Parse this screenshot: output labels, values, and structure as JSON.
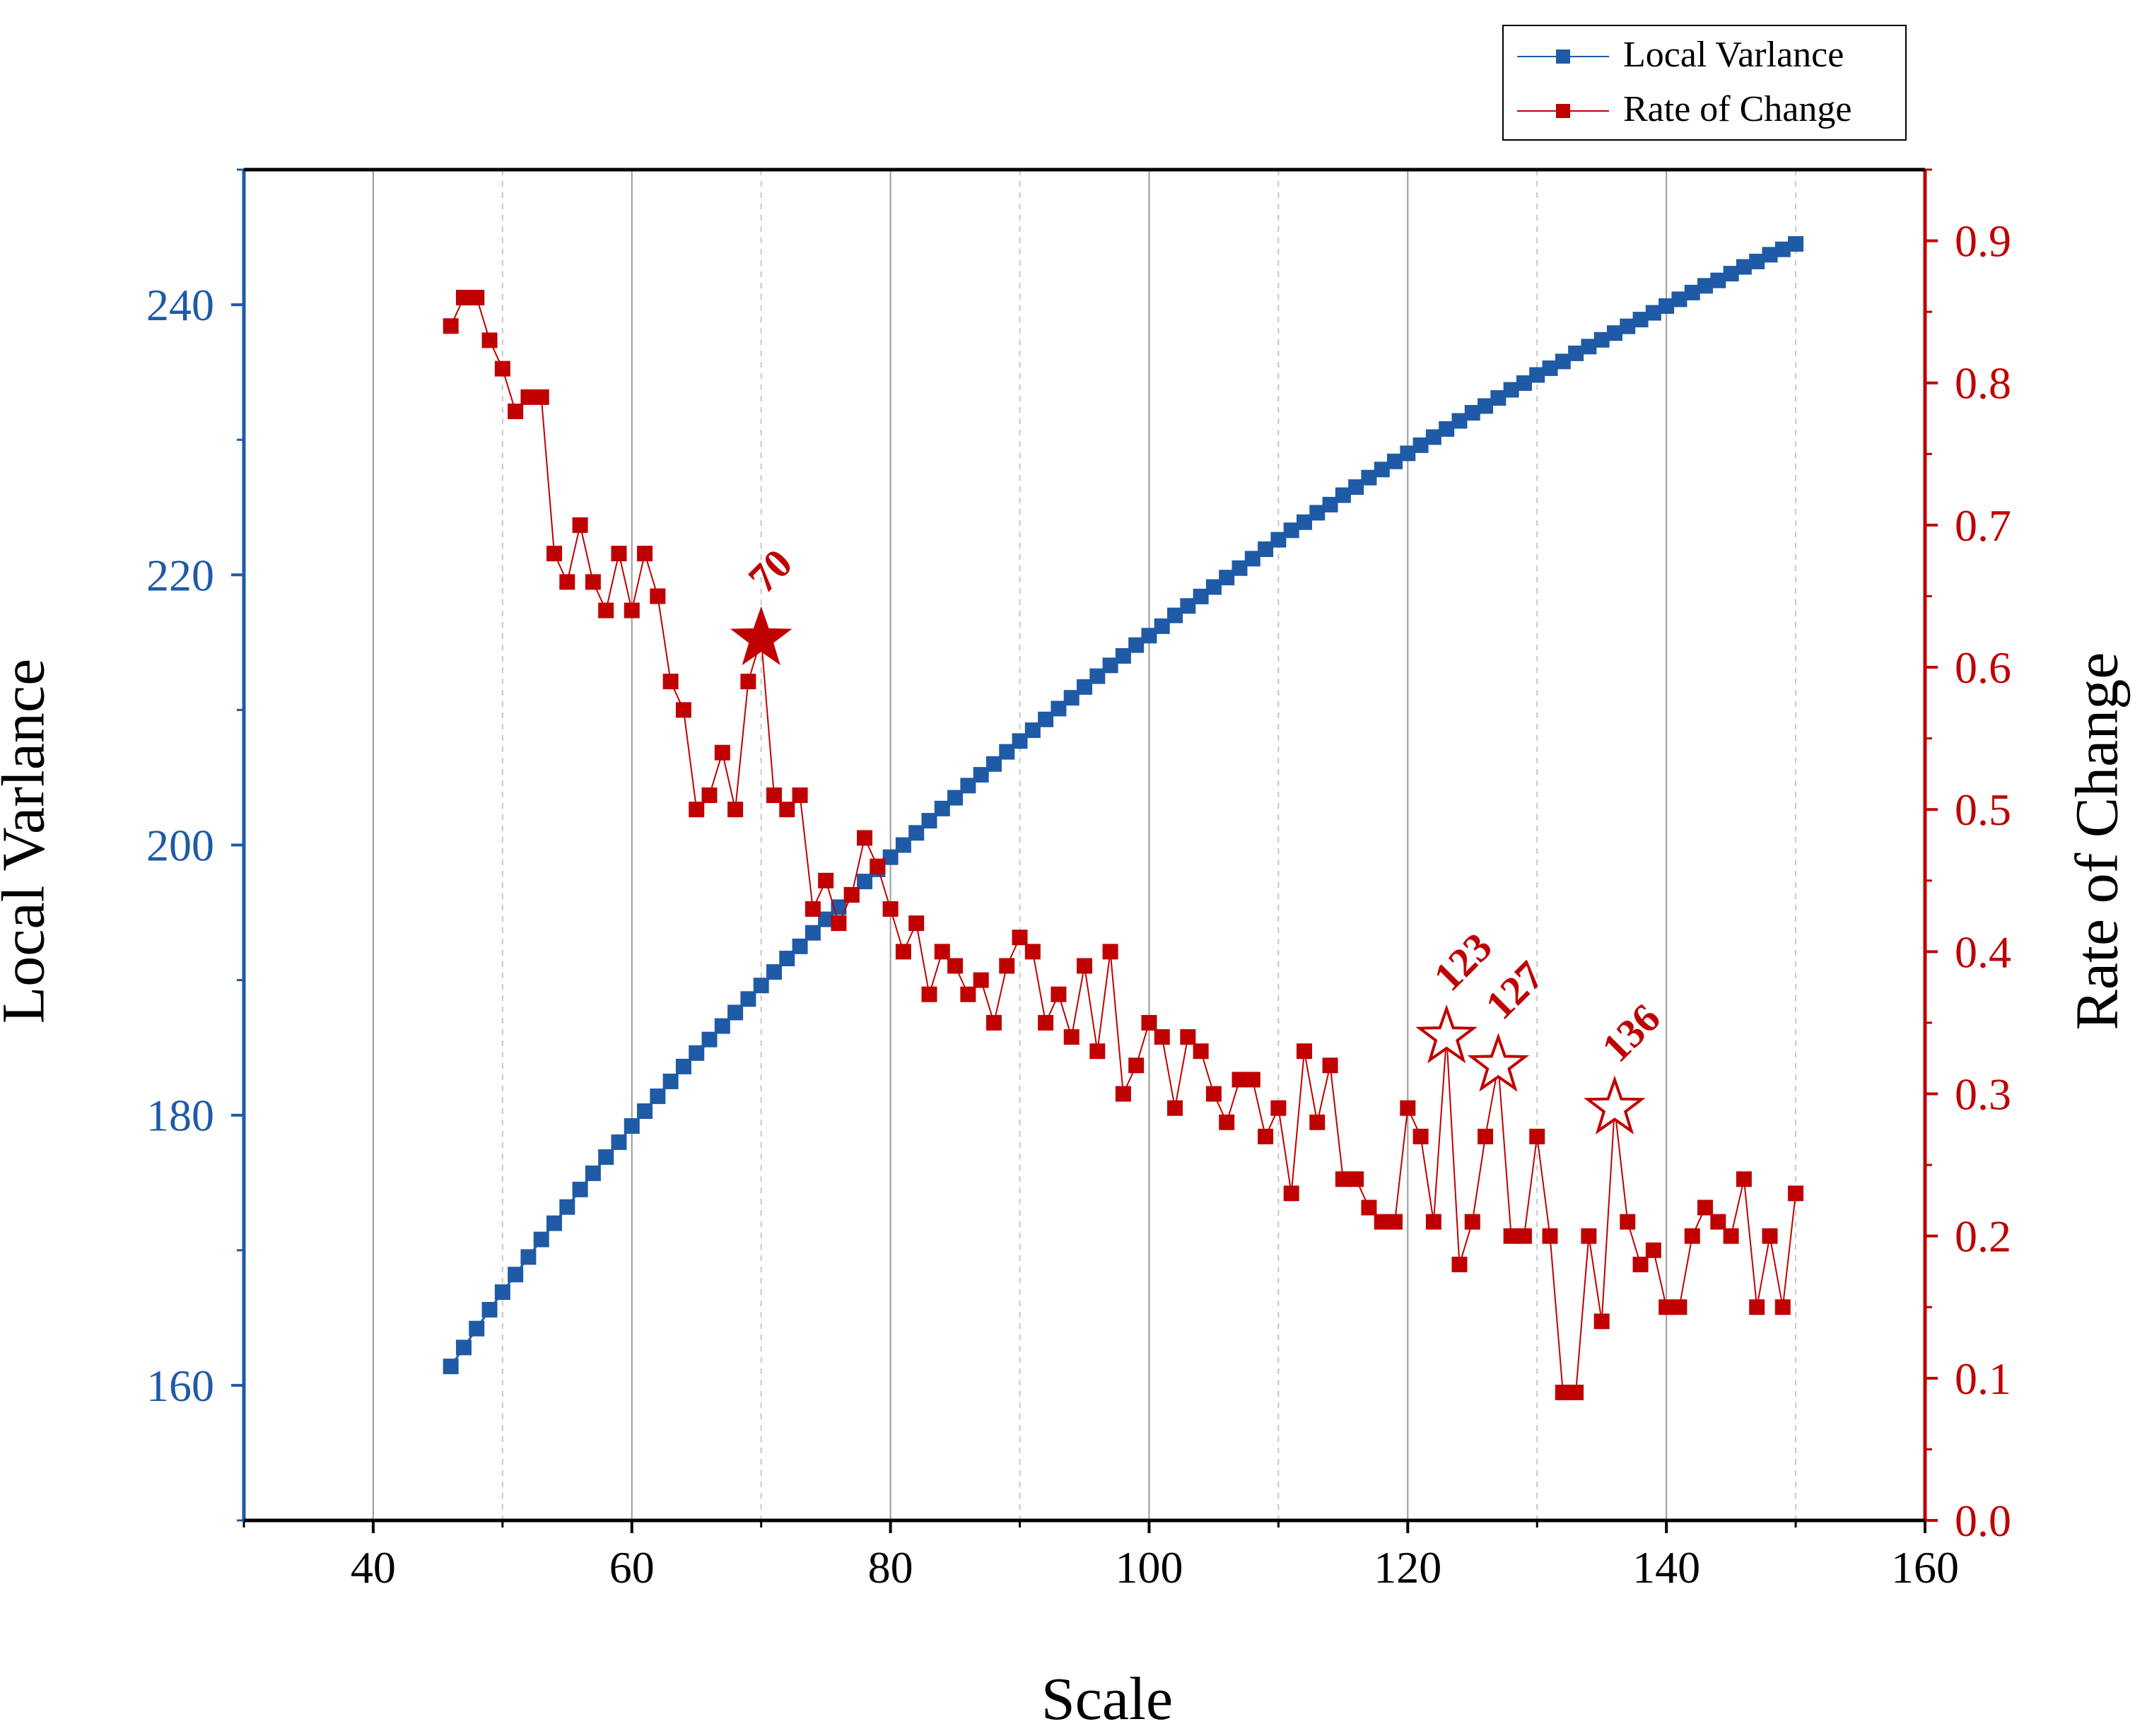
{
  "chart_data": {
    "type": "line",
    "title": "",
    "xlabel": "Scale",
    "ylabel": "Local Varlance",
    "y2label": "Rate of Change",
    "xlim": [
      30,
      160
    ],
    "ylim": [
      150,
      250
    ],
    "y2lim": [
      0.0,
      0.95
    ],
    "x_ticks": [
      "40",
      "60",
      "80",
      "100",
      "120",
      "140",
      "160"
    ],
    "y_ticks": [
      "160",
      "180",
      "200",
      "220",
      "240"
    ],
    "y2_ticks": [
      "0.0",
      "0.1",
      "0.2",
      "0.3",
      "0.4",
      "0.5",
      "0.6",
      "0.7",
      "0.8",
      "0.9"
    ],
    "grid": "vertical",
    "legend_position": "top-right",
    "colors": {
      "local_variance": "#1f5aa6",
      "rate_of_change": "#c00000",
      "left_axis": "#1f5aa6",
      "right_axis": "#c00000",
      "frame": "#000000",
      "grid_major": "#9a9a9a",
      "grid_minor": "#c8c8c8"
    },
    "series": [
      {
        "name": "Local Varlance",
        "axis": "left",
        "x": [
          46,
          47,
          48,
          49,
          50,
          51,
          52,
          53,
          54,
          55,
          56,
          57,
          58,
          59,
          60,
          61,
          62,
          63,
          64,
          65,
          66,
          67,
          68,
          69,
          70,
          71,
          72,
          73,
          74,
          75,
          76,
          77,
          78,
          79,
          80,
          81,
          82,
          83,
          84,
          85,
          86,
          87,
          88,
          89,
          90,
          91,
          92,
          93,
          94,
          95,
          96,
          97,
          98,
          99,
          100,
          101,
          102,
          103,
          104,
          105,
          106,
          107,
          108,
          109,
          110,
          111,
          112,
          113,
          114,
          115,
          116,
          117,
          118,
          119,
          120,
          121,
          122,
          123,
          124,
          125,
          126,
          127,
          128,
          129,
          130,
          131,
          132,
          133,
          134,
          135,
          136,
          137,
          138,
          139,
          140,
          141,
          142,
          143,
          144,
          145,
          146,
          147,
          148,
          149,
          150
        ],
        "values": [
          161.4,
          162.8,
          164.2,
          165.6,
          166.9,
          168.2,
          169.5,
          170.8,
          172.0,
          173.2,
          174.5,
          175.7,
          176.9,
          178.0,
          179.2,
          180.3,
          181.4,
          182.5,
          183.6,
          184.6,
          185.6,
          186.6,
          187.6,
          188.6,
          189.6,
          190.6,
          191.6,
          192.5,
          193.5,
          194.5,
          195.4,
          196.3,
          197.3,
          198.2,
          199.1,
          200.0,
          200.9,
          201.8,
          202.7,
          203.5,
          204.4,
          205.2,
          206.0,
          206.9,
          207.7,
          208.5,
          209.3,
          210.1,
          210.9,
          211.7,
          212.5,
          213.3,
          214.0,
          214.8,
          215.5,
          216.2,
          217.0,
          217.7,
          218.4,
          219.1,
          219.8,
          220.5,
          221.2,
          221.9,
          222.6,
          223.3,
          223.9,
          224.6,
          225.2,
          225.9,
          226.5,
          227.2,
          227.8,
          228.4,
          229.0,
          229.6,
          230.2,
          230.8,
          231.4,
          232.0,
          232.5,
          233.1,
          233.7,
          234.2,
          234.8,
          235.3,
          235.8,
          236.4,
          236.9,
          237.4,
          237.9,
          238.4,
          238.9,
          239.4,
          239.9,
          240.4,
          240.9,
          241.4,
          241.8,
          242.3,
          242.8,
          243.2,
          243.7,
          244.1,
          244.5
        ]
      },
      {
        "name": "Rate of Change",
        "axis": "right",
        "x": [
          46,
          47,
          48,
          49,
          50,
          51,
          52,
          53,
          54,
          55,
          56,
          57,
          58,
          59,
          60,
          61,
          62,
          63,
          64,
          65,
          66,
          67,
          68,
          69,
          70,
          71,
          72,
          73,
          74,
          75,
          76,
          77,
          78,
          79,
          80,
          81,
          82,
          83,
          84,
          85,
          86,
          87,
          88,
          89,
          90,
          91,
          92,
          93,
          94,
          95,
          96,
          97,
          98,
          99,
          100,
          101,
          102,
          103,
          104,
          105,
          106,
          107,
          108,
          109,
          110,
          111,
          112,
          113,
          114,
          115,
          116,
          117,
          118,
          119,
          120,
          121,
          122,
          123,
          124,
          125,
          126,
          127,
          128,
          129,
          130,
          131,
          132,
          133,
          134,
          135,
          136,
          137,
          138,
          139,
          140,
          141,
          142,
          143,
          144,
          145,
          146,
          147,
          148,
          149,
          150
        ],
        "values": [
          0.84,
          0.86,
          0.86,
          0.83,
          0.81,
          0.78,
          0.79,
          0.79,
          0.68,
          0.66,
          0.7,
          0.66,
          0.64,
          0.68,
          0.64,
          0.68,
          0.65,
          0.59,
          0.57,
          0.5,
          0.51,
          0.54,
          0.5,
          0.59,
          0.62,
          0.51,
          0.5,
          0.51,
          0.43,
          0.45,
          0.42,
          0.44,
          0.48,
          0.46,
          0.43,
          0.4,
          0.42,
          0.37,
          0.4,
          0.39,
          0.37,
          0.38,
          0.35,
          0.39,
          0.41,
          0.4,
          0.35,
          0.37,
          0.34,
          0.39,
          0.33,
          0.4,
          0.3,
          0.32,
          0.35,
          0.34,
          0.29,
          0.34,
          0.33,
          0.3,
          0.28,
          0.31,
          0.31,
          0.27,
          0.29,
          0.23,
          0.33,
          0.28,
          0.32,
          0.24,
          0.24,
          0.22,
          0.21,
          0.21,
          0.29,
          0.27,
          0.21,
          0.34,
          0.18,
          0.21,
          0.27,
          0.32,
          0.2,
          0.2,
          0.27,
          0.2,
          0.09,
          0.09,
          0.2,
          0.14,
          0.29,
          0.21,
          0.18,
          0.19,
          0.15,
          0.15,
          0.2,
          0.22,
          0.21,
          0.2,
          0.24,
          0.15,
          0.2,
          0.15,
          0.23
        ]
      }
    ],
    "annotations": [
      {
        "label": "70",
        "x": 70,
        "y": 0.62,
        "marker": "filled-star"
      },
      {
        "label": "123",
        "x": 123,
        "y": 0.34,
        "marker": "hollow-star"
      },
      {
        "label": "127",
        "x": 127,
        "y": 0.32,
        "marker": "hollow-star"
      },
      {
        "label": "136",
        "x": 136,
        "y": 0.29,
        "marker": "hollow-star"
      }
    ]
  }
}
